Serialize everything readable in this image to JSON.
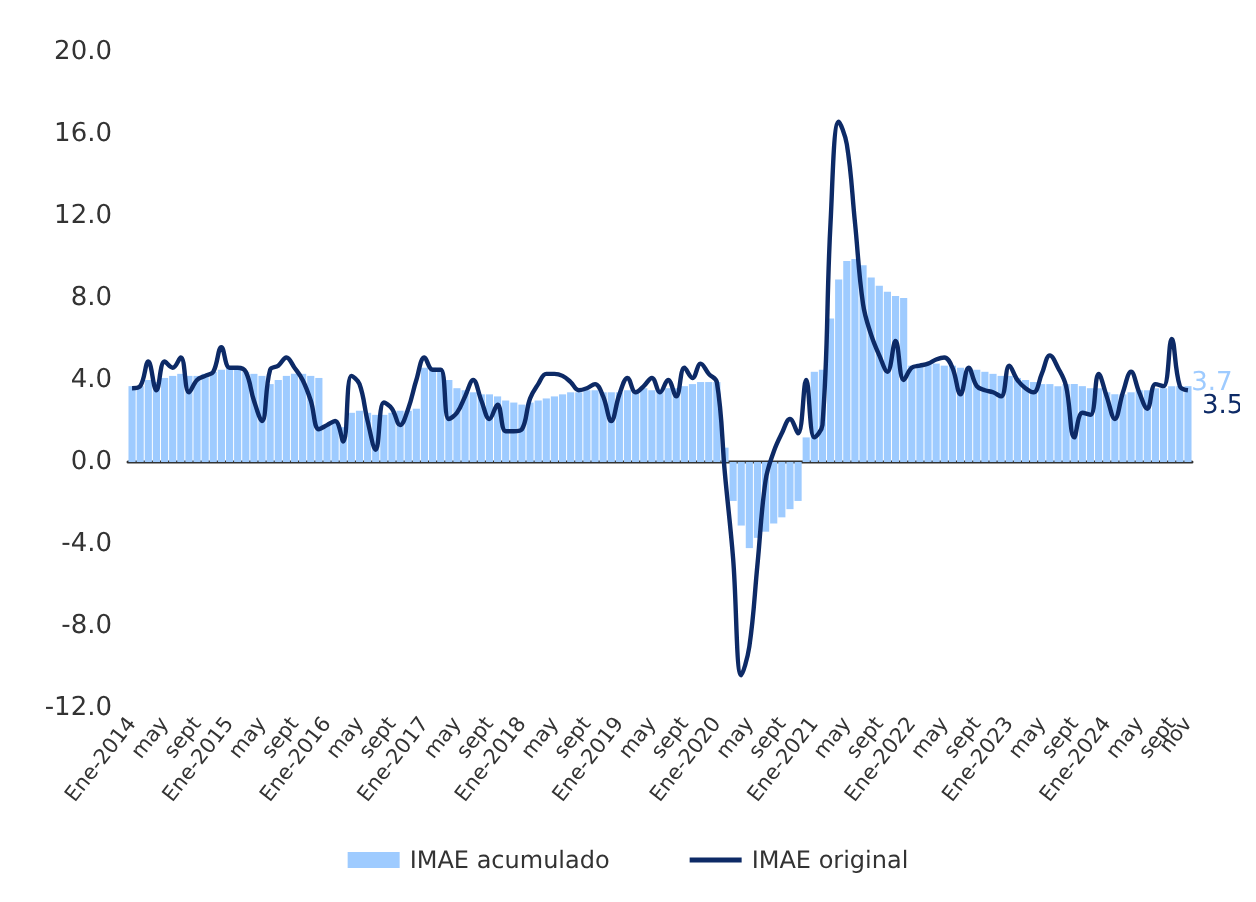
{
  "chart_data": {
    "type": "bar",
    "categories": [
      "Ene-2014",
      null,
      null,
      null,
      "may",
      null,
      null,
      null,
      "sept",
      null,
      null,
      null,
      "Ene-2015",
      null,
      null,
      null,
      "may",
      null,
      null,
      null,
      "sept",
      null,
      null,
      null,
      "Ene-2016",
      null,
      null,
      null,
      "may",
      null,
      null,
      null,
      "sept",
      null,
      null,
      null,
      "Ene-2017",
      null,
      null,
      null,
      "may",
      null,
      null,
      null,
      "sept",
      null,
      null,
      null,
      "Ene-2018",
      null,
      null,
      null,
      "may",
      null,
      null,
      null,
      "sept",
      null,
      null,
      null,
      "Ene-2019",
      null,
      null,
      null,
      "may",
      null,
      null,
      null,
      "sept",
      null,
      null,
      null,
      "Ene-2020",
      null,
      null,
      null,
      "may",
      null,
      null,
      null,
      "sept",
      null,
      null,
      null,
      "Ene-2021",
      null,
      null,
      null,
      "may",
      null,
      null,
      null,
      "sept",
      null,
      null,
      null,
      "Ene-2022",
      null,
      null,
      null,
      "may",
      null,
      null,
      null,
      "sept",
      null,
      null,
      null,
      "Ene-2023",
      null,
      null,
      null,
      "may",
      null,
      null,
      null,
      "sept",
      null,
      null,
      null,
      "Ene-2024",
      null,
      null,
      null,
      "may",
      null,
      null,
      null,
      "sept",
      null,
      "nov"
    ],
    "series": [
      {
        "name": "IMAE acumulado",
        "color": "#9ecbff",
        "values": [
          3.7,
          3.7,
          4.0,
          3.9,
          4.1,
          4.2,
          4.3,
          4.2,
          4.2,
          4.3,
          4.4,
          4.5,
          4.6,
          4.6,
          4.4,
          4.3,
          4.2,
          3.8,
          4.0,
          4.2,
          4.3,
          4.3,
          4.2,
          4.1,
          1.8,
          1.9,
          1.7,
          2.4,
          2.5,
          2.4,
          2.3,
          2.3,
          2.4,
          2.5,
          2.5,
          2.6,
          4.6,
          4.6,
          4.5,
          4.0,
          3.6,
          3.5,
          3.4,
          3.3,
          3.3,
          3.2,
          3.0,
          2.9,
          2.8,
          2.9,
          3.0,
          3.1,
          3.2,
          3.3,
          3.4,
          3.4,
          3.5,
          3.5,
          3.4,
          3.4,
          3.4,
          3.5,
          3.5,
          3.6,
          3.5,
          3.5,
          3.6,
          3.6,
          3.7,
          3.8,
          3.9,
          3.9,
          3.9,
          0.7,
          -1.9,
          -3.1,
          -4.2,
          -3.7,
          -3.4,
          -3.0,
          -2.7,
          -2.3,
          -1.9,
          1.2,
          4.4,
          4.5,
          7.0,
          8.9,
          9.8,
          9.9,
          9.6,
          9.0,
          8.6,
          8.3,
          8.1,
          8.0,
          4.7,
          4.8,
          4.8,
          4.8,
          4.7,
          4.7,
          4.6,
          4.6,
          4.5,
          4.4,
          4.3,
          4.2,
          4.2,
          4.1,
          4.0,
          3.9,
          3.8,
          3.8,
          3.7,
          3.8,
          3.8,
          3.7,
          3.6,
          3.6,
          3.4,
          3.3,
          3.3,
          3.4,
          3.5,
          3.5,
          3.6,
          3.6,
          3.7,
          3.7,
          3.7
        ],
        "value_labels": [
          null,
          null,
          null,
          null,
          null,
          null,
          null,
          null,
          null,
          null,
          null,
          null,
          null,
          null,
          null,
          null,
          null,
          null,
          null,
          null,
          null,
          null,
          null,
          null,
          null,
          null,
          null,
          null,
          null,
          null,
          null,
          null,
          null,
          null,
          null,
          null,
          null,
          null,
          null,
          null,
          null,
          null,
          null,
          null,
          null,
          null,
          null,
          null,
          null,
          null,
          null,
          null,
          null,
          null,
          null,
          null,
          null,
          null,
          null,
          null,
          null,
          null,
          null,
          null,
          null,
          null,
          null,
          null,
          null,
          null,
          null,
          null,
          null,
          null,
          null,
          null,
          null,
          null,
          null,
          null,
          null,
          null,
          null,
          null,
          null,
          null,
          null,
          null,
          null,
          null,
          null,
          null,
          null,
          null,
          null,
          null,
          null,
          null,
          null,
          null,
          null,
          null,
          null,
          null,
          null,
          null,
          null,
          null,
          null,
          null,
          null,
          null,
          null,
          null,
          null,
          null,
          null,
          null,
          null,
          null,
          null,
          null,
          null,
          null,
          null,
          null,
          null,
          null,
          null,
          null,
          "3.7"
        ]
      },
      {
        "name": "IMAE original",
        "type": "line",
        "color": "#0d2a66",
        "values": [
          3.6,
          3.7,
          4.9,
          3.5,
          4.9,
          4.6,
          5.1,
          3.4,
          4.0,
          4.2,
          4.4,
          5.6,
          4.6,
          4.6,
          4.4,
          3.0,
          2.0,
          4.5,
          4.7,
          5.1,
          4.6,
          4.0,
          3.0,
          1.6,
          1.8,
          2.0,
          1.0,
          4.2,
          3.8,
          2.0,
          0.6,
          2.9,
          2.6,
          1.8,
          2.6,
          4.0,
          5.1,
          4.5,
          4.5,
          2.1,
          2.4,
          3.2,
          4.0,
          3.0,
          2.1,
          2.8,
          1.5,
          1.5,
          1.6,
          3.1,
          3.8,
          4.3,
          4.3,
          4.2,
          3.9,
          3.5,
          3.6,
          3.8,
          3.2,
          2.0,
          3.3,
          4.1,
          3.4,
          3.7,
          4.1,
          3.4,
          4.0,
          3.2,
          4.6,
          4.1,
          4.8,
          4.3,
          3.9,
          -0.6,
          -4.7,
          -10.4,
          -9.0,
          -5.0,
          -0.9,
          0.5,
          1.4,
          2.1,
          1.4,
          4.0,
          1.2,
          1.8,
          11.7,
          16.6,
          15.5,
          11.7,
          7.7,
          6.2,
          5.2,
          4.4,
          5.9,
          4.0,
          4.6,
          4.7,
          4.8,
          5.0,
          5.1,
          4.6,
          3.3,
          4.6,
          3.7,
          3.5,
          3.4,
          3.2,
          4.7,
          4.0,
          3.6,
          3.4,
          4.3,
          5.2,
          4.6,
          3.7,
          1.2,
          2.4,
          2.3,
          4.3,
          3.2,
          2.1,
          3.4,
          4.4,
          3.4,
          2.6,
          3.8,
          3.7,
          6.0,
          3.7,
          3.5
        ],
        "value_labels": [
          null,
          null,
          null,
          null,
          null,
          null,
          null,
          null,
          null,
          null,
          null,
          null,
          null,
          null,
          null,
          null,
          null,
          null,
          null,
          null,
          null,
          null,
          null,
          null,
          null,
          null,
          null,
          null,
          null,
          null,
          null,
          null,
          null,
          null,
          null,
          null,
          null,
          null,
          null,
          null,
          null,
          null,
          null,
          null,
          null,
          null,
          null,
          null,
          null,
          null,
          null,
          null,
          null,
          null,
          null,
          null,
          null,
          null,
          null,
          null,
          null,
          null,
          null,
          null,
          null,
          null,
          null,
          null,
          null,
          null,
          null,
          null,
          null,
          null,
          null,
          null,
          null,
          null,
          null,
          null,
          null,
          null,
          null,
          null,
          null,
          null,
          null,
          null,
          null,
          null,
          null,
          null,
          null,
          null,
          null,
          null,
          null,
          null,
          null,
          null,
          null,
          null,
          null,
          null,
          null,
          null,
          null,
          null,
          null,
          null,
          null,
          null,
          null,
          null,
          null,
          null,
          null,
          null,
          null,
          null,
          null,
          null,
          null,
          null,
          null,
          null,
          null,
          null,
          null,
          null,
          "3.5"
        ]
      }
    ],
    "ylim": [
      -12,
      20
    ],
    "yticks": [
      {
        "value": -12,
        "label": "-12.0"
      },
      {
        "value": -8,
        "label": "-8.0"
      },
      {
        "value": -4,
        "label": "-4.0"
      },
      {
        "value": 0,
        "label": "0.0"
      },
      {
        "value": 4,
        "label": "4.0"
      },
      {
        "value": 8,
        "label": "8.0"
      },
      {
        "value": 12,
        "label": "12.0"
      },
      {
        "value": 16,
        "label": "16.0"
      },
      {
        "value": 20,
        "label": "20.0"
      }
    ],
    "marker": "none",
    "legend": "bottom"
  }
}
